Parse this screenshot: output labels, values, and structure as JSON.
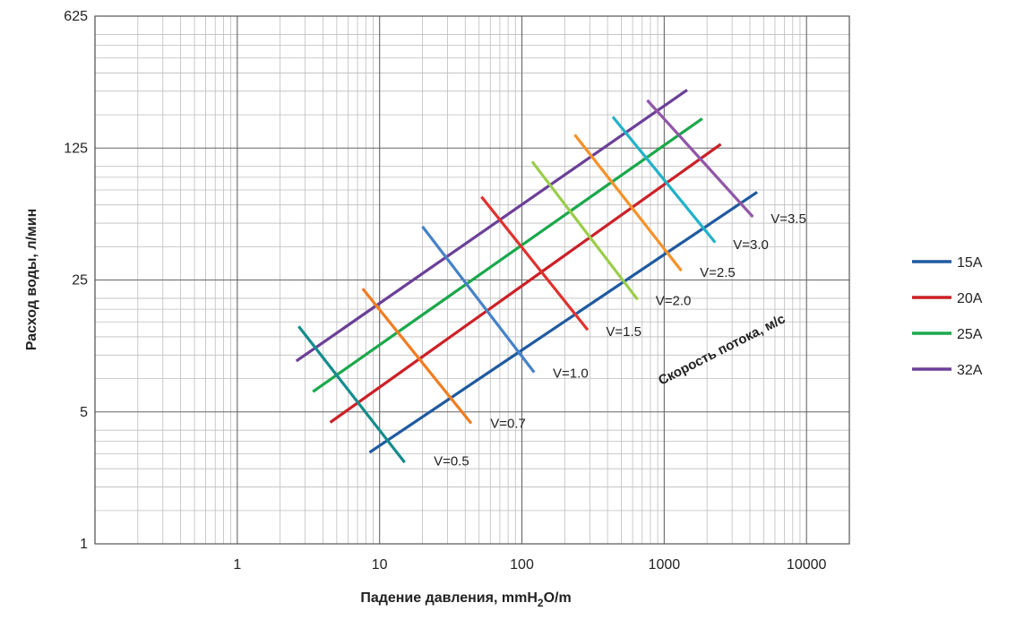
{
  "chart_data": {
    "type": "line",
    "xlabel": "Падение давления, mmH",
    "xlabel_sub": "2",
    "xlabel_suffix": "O/m",
    "ylabel": "Расход воды, л/мин",
    "x_scale": "log",
    "y_scale": "log",
    "xlim": [
      0.1,
      20000
    ],
    "ylim": [
      1,
      625
    ],
    "x_ticks": [
      {
        "value": 1,
        "label": "1"
      },
      {
        "value": 10,
        "label": "10"
      },
      {
        "value": 100,
        "label": "100"
      },
      {
        "value": 1000,
        "label": "1000"
      },
      {
        "value": 10000,
        "label": "10000"
      }
    ],
    "y_ticks": [
      {
        "value": 1,
        "label": "1"
      },
      {
        "value": 5,
        "label": "5"
      },
      {
        "value": 25,
        "label": "25"
      },
      {
        "value": 125,
        "label": "125"
      },
      {
        "value": 625,
        "label": "625"
      }
    ],
    "y_minor_factors": [
      1.5,
      2,
      2.5,
      3,
      3.5,
      4
    ],
    "grid": true,
    "legend_position": "right",
    "series": [
      {
        "name": "15A",
        "color": "#1f5aa0",
        "x": [
          8.5,
          4500
        ],
        "y": [
          3.05,
          73
        ]
      },
      {
        "name": "20A",
        "color": "#cc2027",
        "x": [
          4.5,
          2500
        ],
        "y": [
          4.4,
          131
        ]
      },
      {
        "name": "25A",
        "color": "#1aa84b",
        "x": [
          3.4,
          1850
        ],
        "y": [
          6.4,
          179
        ]
      },
      {
        "name": "32A",
        "color": "#6b3f98",
        "x": [
          2.6,
          1450
        ],
        "y": [
          9.3,
          254
        ]
      }
    ],
    "speed_title": "Скорость потока, м/с",
    "velocity_lines": [
      {
        "label": "V=0.5",
        "color": "#138c8c",
        "x": [
          2.7,
          15
        ],
        "y": [
          14.2,
          2.7
        ],
        "label_at": [
          24,
          2.75
        ]
      },
      {
        "label": "V=0.7",
        "color": "#f07d22",
        "x": [
          7.6,
          44
        ],
        "y": [
          22.5,
          4.35
        ],
        "label_at": [
          60,
          4.35
        ]
      },
      {
        "label": "V=1.0",
        "color": "#4682c8",
        "x": [
          20,
          122
        ],
        "y": [
          48,
          8.1
        ],
        "label_at": [
          165,
          8.0
        ]
      },
      {
        "label": "V=1.5",
        "color": "#e0312d",
        "x": [
          52,
          290
        ],
        "y": [
          69,
          13.6
        ],
        "label_at": [
          390,
          13.3
        ]
      },
      {
        "label": "V=2.0",
        "color": "#9acd4a",
        "x": [
          118,
          650
        ],
        "y": [
          106,
          19.7
        ],
        "label_at": [
          870,
          19.4
        ]
      },
      {
        "label": "V=2.5",
        "color": "#f5922a",
        "x": [
          235,
          1320
        ],
        "y": [
          147,
          28
        ],
        "label_at": [
          1780,
          27.5
        ]
      },
      {
        "label": "V=3.0",
        "color": "#22b2c8",
        "x": [
          435,
          2280
        ],
        "y": [
          183,
          39.5
        ],
        "label_at": [
          3050,
          38.5
        ]
      },
      {
        "label": "V=3.5",
        "color": "#9055a8",
        "x": [
          760,
          4200
        ],
        "y": [
          224,
          54
        ],
        "label_at": [
          5600,
          53
        ]
      }
    ]
  }
}
